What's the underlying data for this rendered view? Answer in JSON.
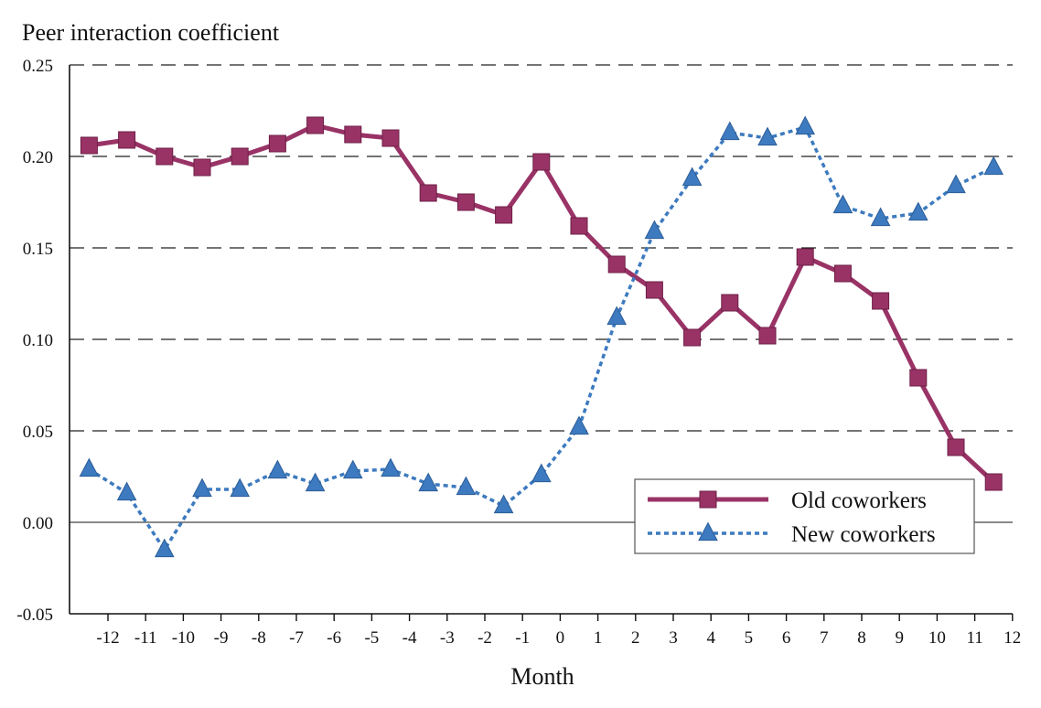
{
  "chart_data": {
    "type": "line",
    "title": "",
    "ylabel": "Peer interaction coefficient",
    "xlabel": "Month",
    "ylim": [
      -0.05,
      0.25
    ],
    "yticks": [
      -0.05,
      0.0,
      0.05,
      0.1,
      0.15,
      0.2,
      0.25
    ],
    "ytick_labels": [
      "-0.05",
      "0.00",
      "0.05",
      "0.10",
      "0.15",
      "0.20",
      "0.25"
    ],
    "xticks": [
      -12,
      -11,
      -10,
      -9,
      -8,
      -7,
      -6,
      -5,
      -4,
      -3,
      -2,
      -1,
      0,
      1,
      2,
      3,
      4,
      5,
      6,
      7,
      8,
      9,
      10,
      11,
      12
    ],
    "xtick_labels": [
      "-12",
      "-11",
      "-10",
      "-9",
      "-8",
      "-7",
      "-6",
      "-5",
      "-4",
      "-3",
      "-2",
      "-1",
      "0",
      "1",
      "2",
      "3",
      "4",
      "5",
      "6",
      "7",
      "8",
      "9",
      "10",
      "11",
      "12"
    ],
    "x": [
      -12.5,
      -11.5,
      -10.5,
      -9.5,
      -8.5,
      -7.5,
      -6.5,
      -5.5,
      -4.5,
      -3.5,
      -2.5,
      -1.5,
      -0.5,
      0.5,
      1.5,
      2.5,
      3.5,
      4.5,
      5.5,
      6.5,
      7.5,
      8.5,
      9.5,
      10.5,
      11.5
    ],
    "grid": "dashed horizontal",
    "legend_position": "bottom-right",
    "series": [
      {
        "name": "Old coworkers",
        "color": "#993366",
        "marker": "square",
        "line_style": "solid",
        "values": [
          0.206,
          0.209,
          0.2,
          0.194,
          0.2,
          0.207,
          0.217,
          0.212,
          0.21,
          0.18,
          0.175,
          0.168,
          0.197,
          0.162,
          0.141,
          0.127,
          0.101,
          0.12,
          0.102,
          0.145,
          0.136,
          0.121,
          0.079,
          0.041,
          0.022
        ]
      },
      {
        "name": "New coworkers",
        "color": "#3d7abf",
        "marker": "triangle",
        "line_style": "dotted",
        "values": [
          0.029,
          0.016,
          -0.015,
          0.018,
          0.018,
          0.028,
          0.021,
          0.028,
          0.029,
          0.021,
          0.019,
          0.009,
          0.026,
          0.052,
          0.112,
          0.159,
          0.188,
          0.213,
          0.21,
          0.216,
          0.173,
          0.166,
          0.169,
          0.184,
          0.194
        ]
      }
    ]
  }
}
